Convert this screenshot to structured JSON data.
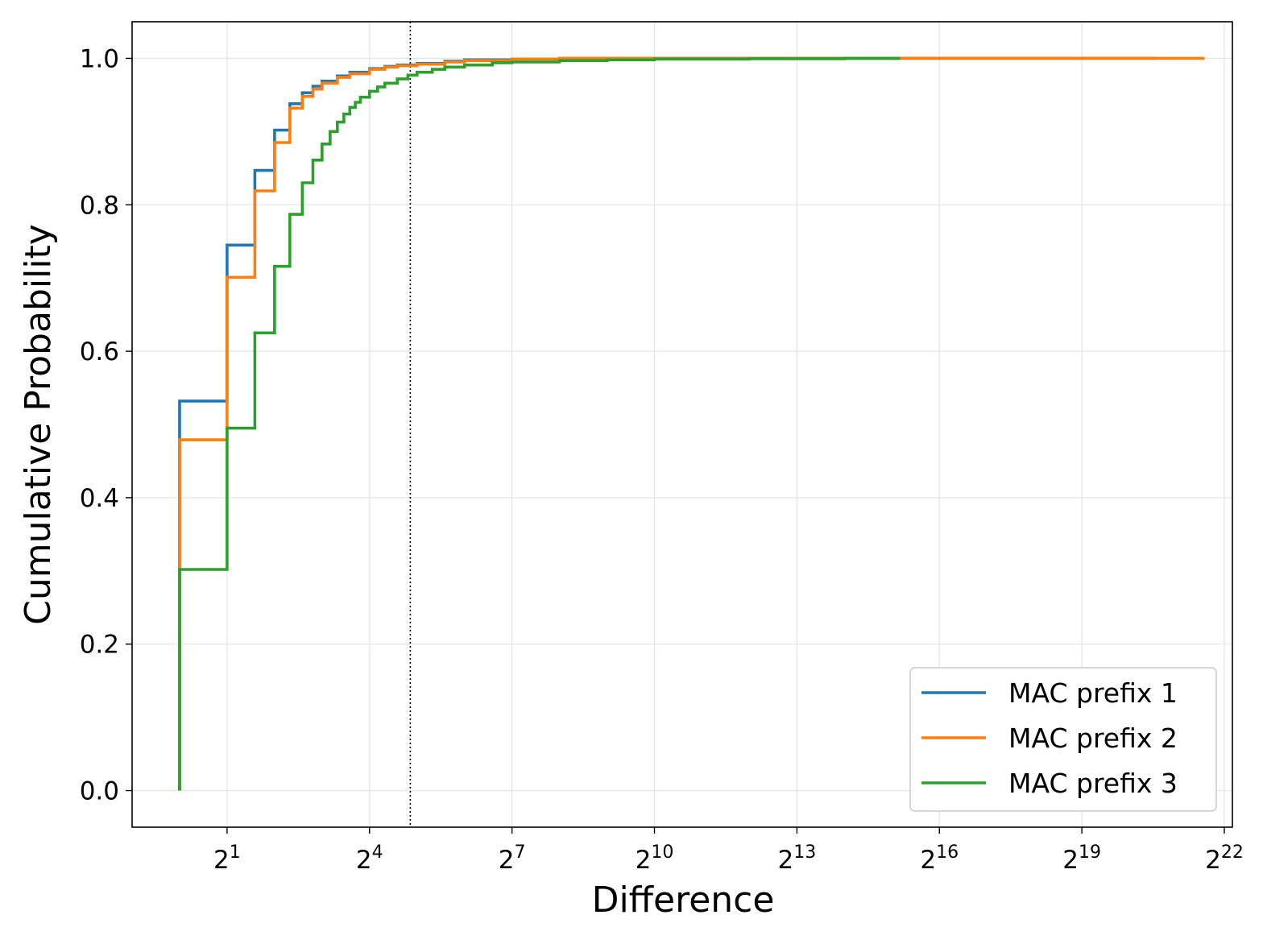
{
  "chart_data": {
    "type": "line",
    "step": true,
    "xscale": "log2",
    "xlabel": "Difference",
    "ylabel": "Cumulative Probability",
    "xlim": [
      0.5,
      4718592
    ],
    "ylim": [
      -0.05,
      1.05
    ],
    "x_ticks": [
      {
        "value": 2,
        "base": "2",
        "exp": "1"
      },
      {
        "value": 16,
        "base": "2",
        "exp": "4"
      },
      {
        "value": 128,
        "base": "2",
        "exp": "7"
      },
      {
        "value": 1024,
        "base": "2",
        "exp": "10"
      },
      {
        "value": 8192,
        "base": "2",
        "exp": "13"
      },
      {
        "value": 65536,
        "base": "2",
        "exp": "16"
      },
      {
        "value": 524288,
        "base": "2",
        "exp": "19"
      },
      {
        "value": 4194304,
        "base": "2",
        "exp": "22"
      }
    ],
    "y_ticks": [
      {
        "value": 0.0,
        "label": "0.0"
      },
      {
        "value": 0.2,
        "label": "0.2"
      },
      {
        "value": 0.4,
        "label": "0.4"
      },
      {
        "value": 0.6,
        "label": "0.6"
      },
      {
        "value": 0.8,
        "label": "0.8"
      },
      {
        "value": 1.0,
        "label": "1.0"
      }
    ],
    "grid": true,
    "legend_position": "lower-right",
    "reference_line": {
      "x": 29,
      "style": "dotted",
      "color": "#000000"
    },
    "series": [
      {
        "name": "MAC prefix 1",
        "color": "#1f77b4",
        "x": [
          1,
          2,
          3,
          4,
          5,
          6,
          7,
          8,
          10,
          12,
          16,
          20,
          24,
          32,
          48,
          64,
          128,
          256,
          1024,
          1572864
        ],
        "y": [
          0.532,
          0.745,
          0.847,
          0.902,
          0.938,
          0.953,
          0.962,
          0.969,
          0.976,
          0.981,
          0.986,
          0.989,
          0.991,
          0.993,
          0.996,
          0.998,
          0.999,
          1.0,
          1.0,
          1.0
        ]
      },
      {
        "name": "MAC prefix 2",
        "color": "#ff7f0e",
        "x": [
          1,
          2,
          3,
          4,
          5,
          6,
          7,
          8,
          10,
          12,
          16,
          20,
          24,
          32,
          48,
          64,
          128,
          256,
          1024,
          3145728
        ],
        "y": [
          0.479,
          0.701,
          0.819,
          0.885,
          0.932,
          0.948,
          0.958,
          0.966,
          0.974,
          0.979,
          0.985,
          0.988,
          0.99,
          0.992,
          0.995,
          0.997,
          0.999,
          1.0,
          1.0,
          1.0
        ]
      },
      {
        "name": "MAC prefix 3",
        "color": "#2ca02c",
        "x": [
          1,
          2,
          3,
          4,
          5,
          6,
          7,
          8,
          9,
          10,
          11,
          12,
          13,
          14,
          16,
          18,
          20,
          24,
          28,
          32,
          40,
          48,
          64,
          96,
          128,
          256,
          512,
          1024,
          4096,
          16384,
          36864
        ],
        "y": [
          0.302,
          0.495,
          0.625,
          0.716,
          0.787,
          0.83,
          0.861,
          0.883,
          0.9,
          0.913,
          0.924,
          0.933,
          0.94,
          0.947,
          0.955,
          0.961,
          0.966,
          0.972,
          0.977,
          0.981,
          0.985,
          0.988,
          0.991,
          0.994,
          0.995,
          0.997,
          0.998,
          0.999,
          0.9995,
          1.0,
          1.0
        ]
      }
    ]
  }
}
